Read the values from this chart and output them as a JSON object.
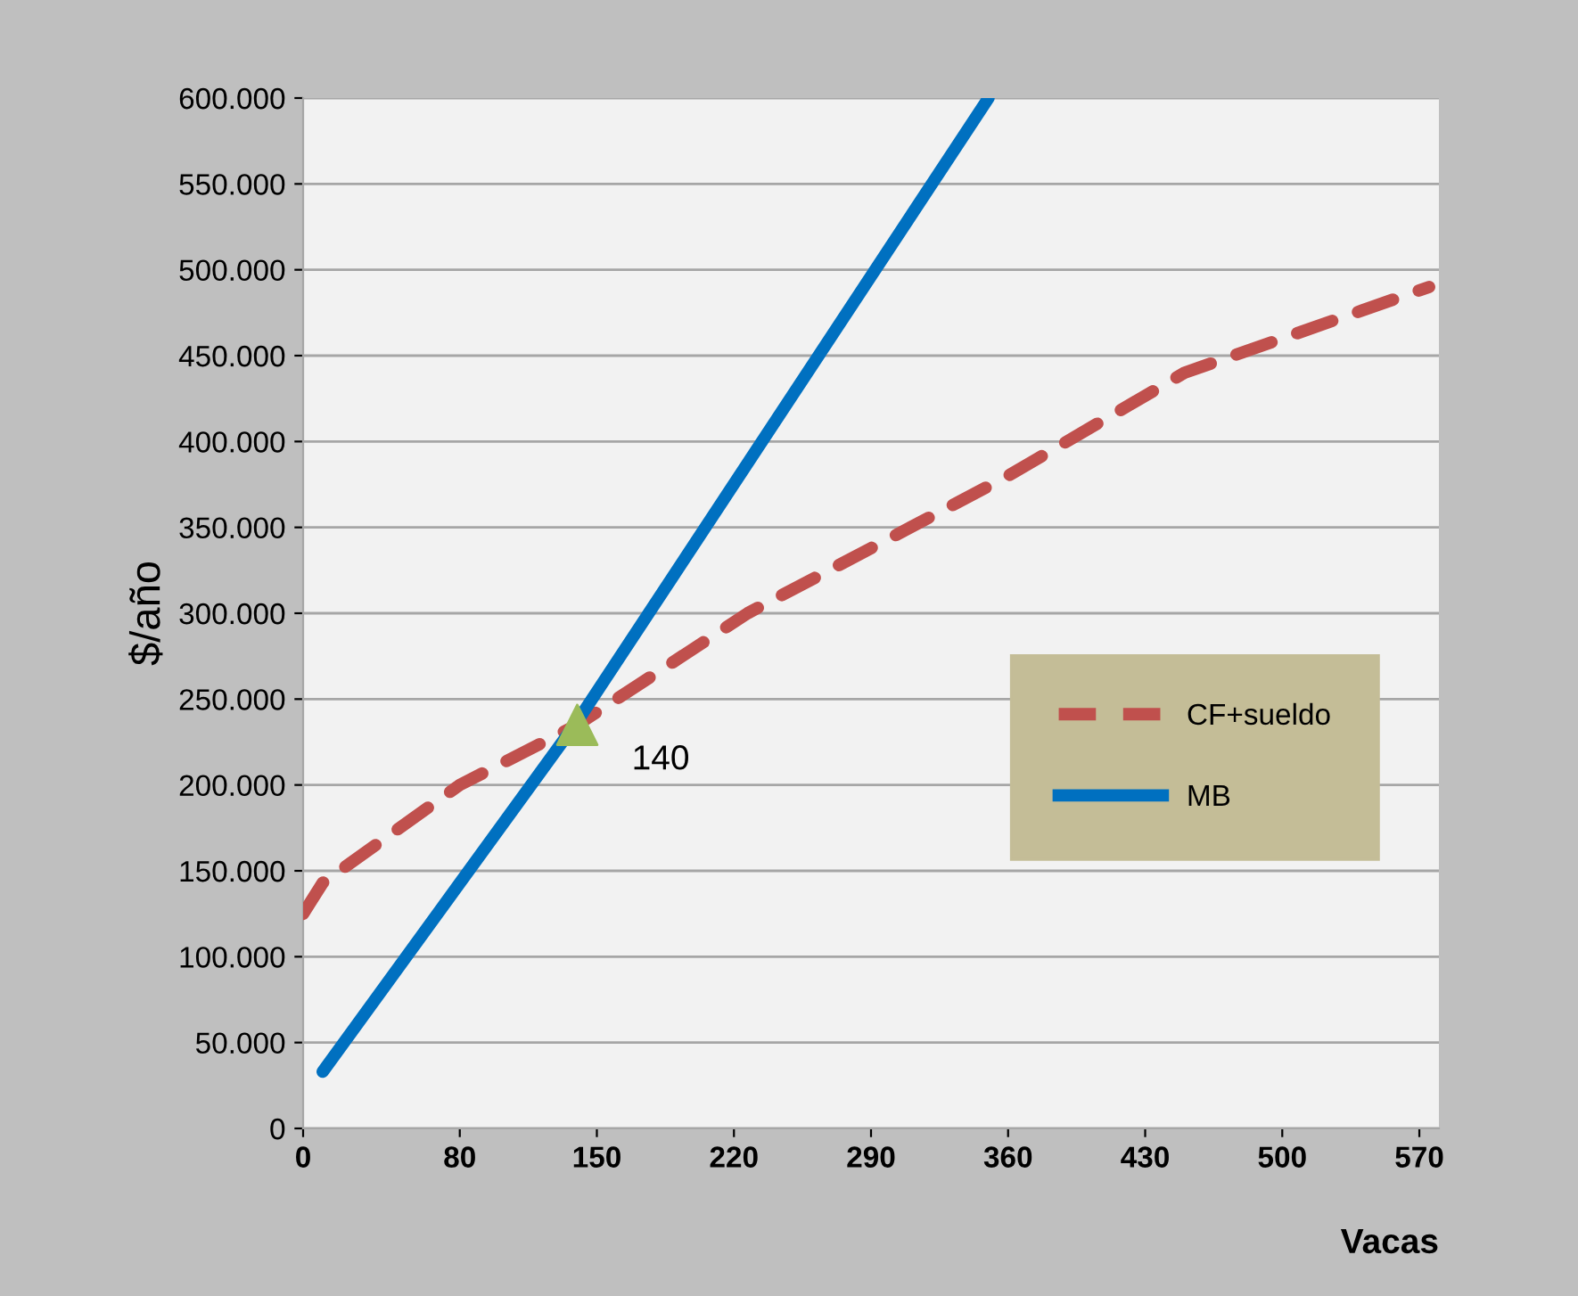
{
  "chart_data": {
    "type": "line",
    "xlabel": "Vacas",
    "ylabel": "$/año",
    "xlim": [
      0,
      580
    ],
    "xticks": [
      0,
      80,
      150,
      220,
      290,
      360,
      430,
      500,
      570
    ],
    "ylim": [
      0,
      600000
    ],
    "yticks": [
      {
        "value": 0,
        "label": "0"
      },
      {
        "value": 50000,
        "label": "50.000"
      },
      {
        "value": 100000,
        "label": "100.000"
      },
      {
        "value": 150000,
        "label": "150.000"
      },
      {
        "value": 200000,
        "label": "200.000"
      },
      {
        "value": 250000,
        "label": "250.000"
      },
      {
        "value": 300000,
        "label": "300.000"
      },
      {
        "value": 350000,
        "label": "350.000"
      },
      {
        "value": 400000,
        "label": "400.000"
      },
      {
        "value": 450000,
        "label": "450.000"
      },
      {
        "value": 500000,
        "label": "500.000"
      },
      {
        "value": 550000,
        "label": "550.000"
      },
      {
        "value": 600000,
        "label": "600.000"
      }
    ],
    "grid": "y",
    "legend": "right",
    "series": [
      {
        "name": "CF+sueldo",
        "color": "#c0504d",
        "line_style": "dashed",
        "x": [
          0,
          10,
          80,
          140,
          227,
          360,
          450,
          575
        ],
        "values": [
          125000,
          143000,
          200000,
          235000,
          300000,
          380000,
          440000,
          490000
        ]
      },
      {
        "name": "MB",
        "color": "#0070c0",
        "line_style": "solid",
        "x": [
          10,
          140,
          350
        ],
        "values": [
          33000,
          237000,
          600000
        ]
      },
      {
        "type": "scatter",
        "color": "#9bbb59",
        "marker": "triangle",
        "x": [
          140
        ],
        "values": [
          235000
        ]
      }
    ],
    "annotations": [
      {
        "text": "140",
        "x": 140,
        "y": 235000
      }
    ]
  }
}
